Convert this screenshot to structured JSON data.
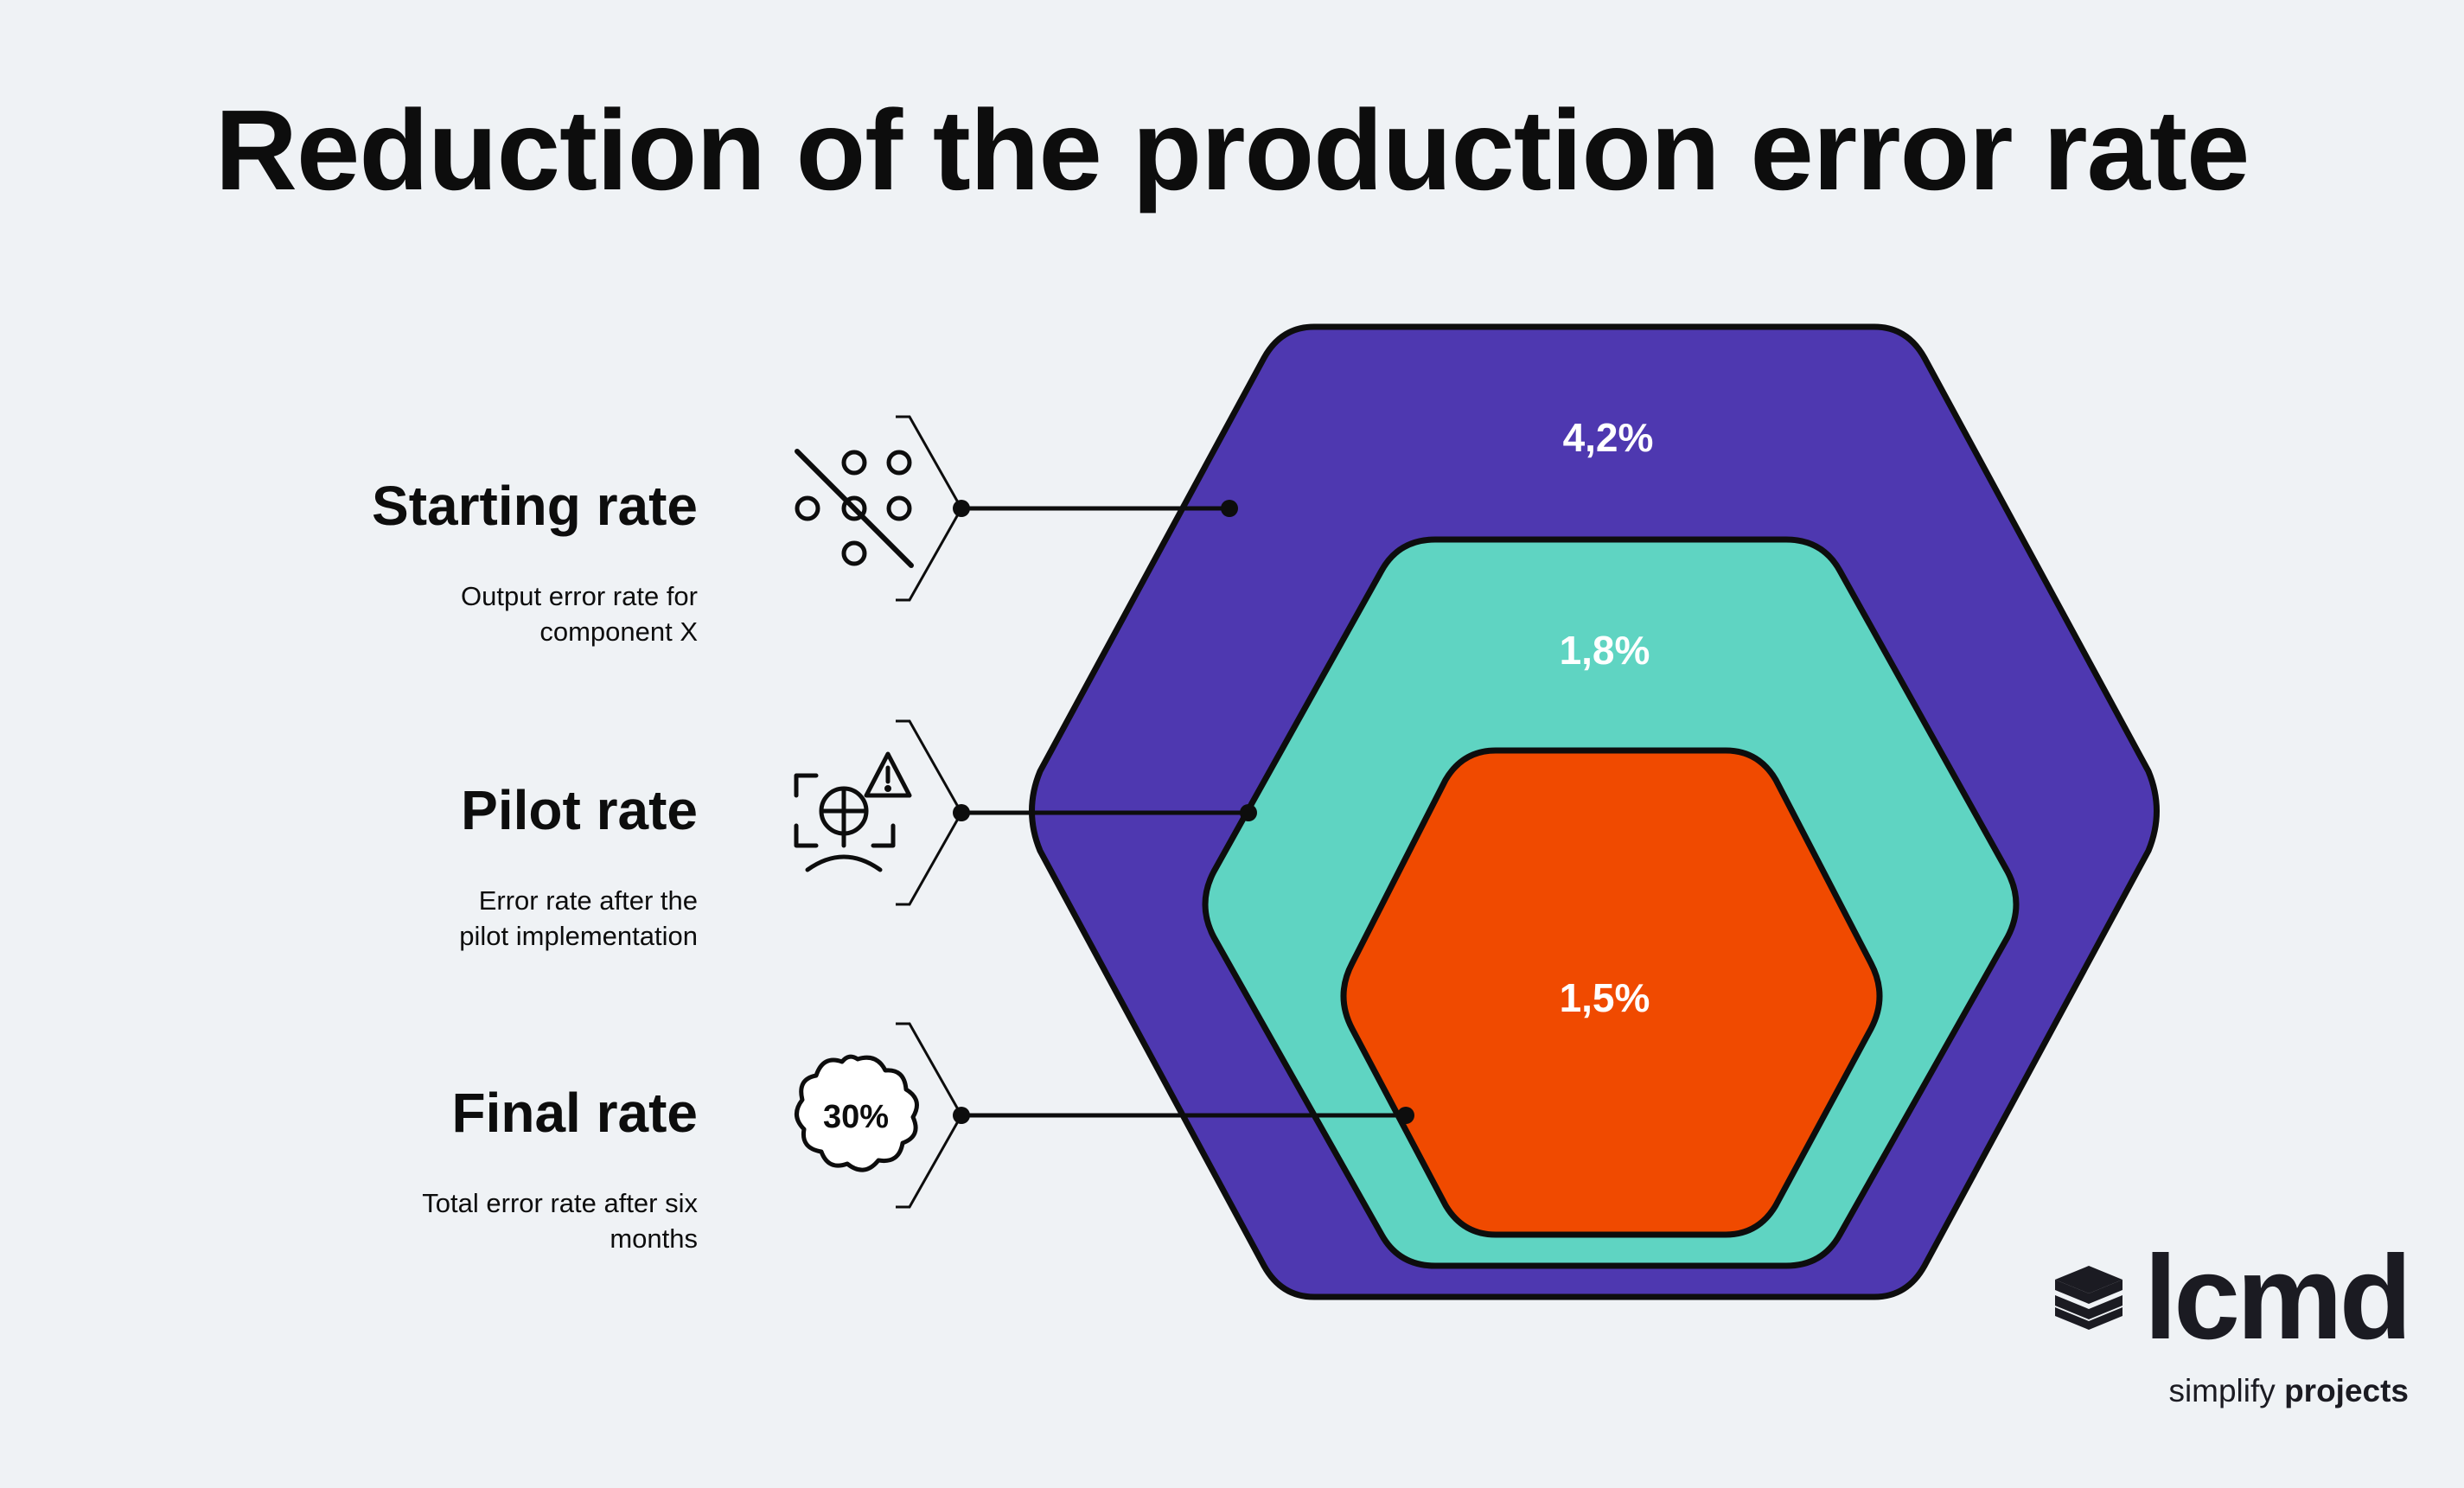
{
  "title": "Reduction of the production error rate",
  "rates": [
    {
      "label": "Starting rate",
      "description": "Output error rate for\ncomponent X",
      "value": "4,2%",
      "icon": "percent-dots-icon",
      "color": "#4e38b0"
    },
    {
      "label": "Pilot rate",
      "description": "Error rate after the\npilot implementation",
      "value": "1,8%",
      "icon": "pie-warning-face-icon",
      "color": "#5fd4c2"
    },
    {
      "label": "Final rate",
      "description": "Total error rate after six\nmonths",
      "value": "1,5%",
      "icon": "badge-30-percent-icon",
      "color": "#f04a00"
    }
  ],
  "badge_text": "30%",
  "brand": {
    "name": "lcmd",
    "tagline_prefix": "simplify",
    "tagline_bold": "projects",
    "icon": "stacked-layers-icon"
  }
}
